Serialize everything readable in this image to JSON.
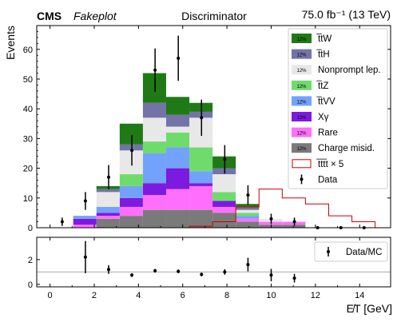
{
  "header": {
    "experiment": "CMS",
    "tag": "Fakeplot",
    "title": "Discriminator",
    "lumi": "75.0 fb⁻¹ (13 TeV)"
  },
  "chart_data": [
    {
      "type": "bar",
      "stacked": true,
      "ylabel": "Events",
      "xlim": [
        -0.6,
        15.4
      ],
      "ylim": [
        0,
        68
      ],
      "xticks": [
        0,
        2,
        4,
        6,
        8,
        10,
        12,
        14
      ],
      "yticks": [
        0,
        10,
        20,
        30,
        40,
        50,
        60
      ],
      "bin_edges": [
        1.05,
        2.1,
        3.15,
        4.2,
        5.25,
        6.3,
        7.35,
        8.4,
        9.45,
        10.5,
        11.55
      ],
      "series": [
        {
          "name": "Charge misid.",
          "color": "#7a7a7a",
          "badge": "12%",
          "values": [
            0,
            3,
            4,
            6,
            6,
            6,
            5,
            2,
            1,
            1
          ]
        },
        {
          "name": "Rare",
          "color": "#ff6ffb",
          "badge": "12%",
          "values": [
            1,
            1,
            3,
            5,
            7,
            8,
            2,
            1,
            1,
            1
          ]
        },
        {
          "name": "Xγ",
          "color": "#7d1adf",
          "badge": "12%",
          "values": [
            2,
            1,
            3,
            4,
            7,
            1,
            2,
            0,
            0,
            0
          ]
        },
        {
          "name": "t̅tVV",
          "color": "#73a2fd",
          "badge": "12%",
          "values": [
            1,
            2,
            4,
            10,
            7,
            4,
            0,
            1,
            0,
            0
          ]
        },
        {
          "name": "t̅tZ",
          "color": "#6fdb6d",
          "badge": "12%",
          "values": [
            0,
            0,
            4,
            4,
            5,
            8,
            3,
            1,
            0,
            0
          ]
        },
        {
          "name": "Nonprompt lep.",
          "color": "#e8e8e8",
          "badge": "12%",
          "values": [
            0,
            5,
            8,
            8,
            2,
            10,
            6,
            1,
            1,
            0
          ]
        },
        {
          "name": "t̅tH",
          "color": "#7373a8",
          "badge": "12%",
          "values": [
            0,
            1,
            2,
            5,
            4,
            2,
            2,
            1,
            0,
            0
          ]
        },
        {
          "name": "t̅tW",
          "color": "#1f7a15",
          "badge": "12%",
          "values": [
            0,
            1,
            7,
            10,
            6,
            3,
            4,
            1,
            0,
            0
          ]
        }
      ],
      "signal": {
        "name": "t̅tt̅t × 5",
        "color": "#cc0000",
        "bin_edges": [
          6.3,
          7.35,
          8.4,
          9.45,
          10.5,
          11.55,
          12.6,
          13.65,
          14.7
        ],
        "values": [
          0.5,
          2,
          7,
          13,
          10,
          8,
          4,
          2
        ]
      },
      "data_series": {
        "name": "Data",
        "x": [
          0.55,
          1.6,
          2.65,
          3.7,
          4.75,
          5.8,
          6.85,
          7.9,
          8.95,
          10.0,
          11.05,
          12.1,
          13.15,
          14.2
        ],
        "y": [
          2,
          9,
          17,
          26,
          53,
          57,
          37,
          23,
          11,
          3,
          2,
          0,
          0,
          0
        ],
        "err": [
          1.4,
          3,
          4.1,
          5.1,
          7.3,
          7.6,
          6.1,
          4.8,
          3.3,
          1.7,
          1.4,
          0,
          0,
          0
        ]
      },
      "legend_position": "top-right"
    },
    {
      "type": "scatter",
      "xlabel": "E̸T [GeV]",
      "ylim": [
        -0.2,
        3.8
      ],
      "yticks": [
        0,
        2
      ],
      "xticks": [
        0,
        2,
        4,
        6,
        8,
        10,
        12,
        14
      ],
      "reference_line": 1,
      "series": [
        {
          "name": "Data/MC",
          "x": [
            1.6,
            2.65,
            3.7,
            4.75,
            5.8,
            6.85,
            7.9,
            8.95,
            10.0,
            11.05
          ],
          "y": [
            2.2,
            1.2,
            0.75,
            1.1,
            1.05,
            0.8,
            1.0,
            1.6,
            0.75,
            0.5
          ],
          "err": [
            1.3,
            0.35,
            0.15,
            0.15,
            0.15,
            0.15,
            0.22,
            0.55,
            0.5,
            0.35
          ]
        }
      ],
      "legend_position": "top-right"
    }
  ]
}
